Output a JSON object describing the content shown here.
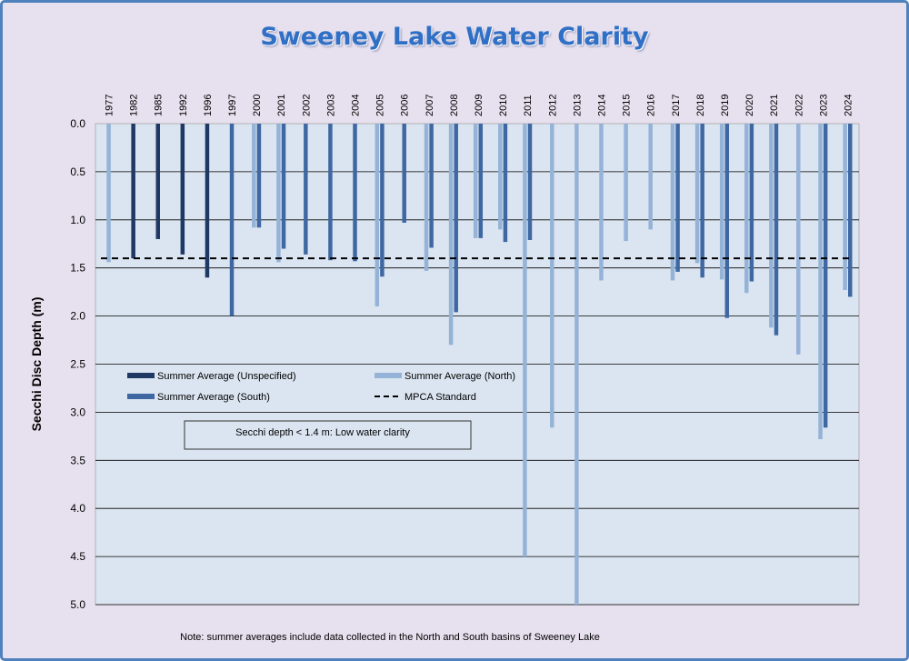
{
  "chart_data": {
    "type": "bar",
    "title": "Sweeney Lake Water Clarity",
    "ylabel": "Secchi Disc Depth (m)",
    "xlabel": "",
    "ylim": [
      0,
      5
    ],
    "y_inverted": true,
    "x_axis_position": "top",
    "y_ticks": [
      "0.0",
      "0.5",
      "1.0",
      "1.5",
      "2.0",
      "2.5",
      "3.0",
      "3.5",
      "4.0",
      "4.5",
      "5.0"
    ],
    "grid": true,
    "categories": [
      "1977",
      "1982",
      "1985",
      "1992",
      "1996",
      "1997",
      "2000",
      "2001",
      "2002",
      "2003",
      "2004",
      "2005",
      "2006",
      "2007",
      "2008",
      "2009",
      "2010",
      "2011",
      "2012",
      "2013",
      "2014",
      "2015",
      "2016",
      "2017",
      "2018",
      "2019",
      "2020",
      "2021",
      "2022",
      "2023",
      "2024"
    ],
    "series": [
      {
        "name": "Summer Average (Unspecified)",
        "color": "#1f3864",
        "values": [
          null,
          1.4,
          1.2,
          1.36,
          1.6,
          null,
          null,
          null,
          null,
          null,
          null,
          null,
          null,
          null,
          null,
          null,
          null,
          null,
          null,
          null,
          null,
          null,
          null,
          null,
          null,
          null,
          null,
          null,
          null,
          null,
          null
        ]
      },
      {
        "name": "Summer Average (North)",
        "color": "#95b3d7",
        "values": [
          1.44,
          null,
          null,
          null,
          null,
          null,
          1.08,
          1.44,
          null,
          null,
          null,
          1.9,
          null,
          1.53,
          2.3,
          1.19,
          1.1,
          4.5,
          3.16,
          5.0,
          1.63,
          1.22,
          1.1,
          1.63,
          1.45,
          1.62,
          1.76,
          2.12,
          2.4,
          3.28,
          1.73
        ]
      },
      {
        "name": "Summer Average (South)",
        "color": "#3f68a3",
        "values": [
          null,
          null,
          null,
          null,
          null,
          2.0,
          1.08,
          1.3,
          1.36,
          1.42,
          1.43,
          1.59,
          1.03,
          1.29,
          1.96,
          1.19,
          1.23,
          1.21,
          null,
          null,
          null,
          null,
          null,
          1.54,
          1.6,
          2.02,
          1.64,
          2.2,
          null,
          3.16,
          1.8
        ]
      }
    ],
    "reference_line": {
      "name": "MPCA Standard",
      "value": 1.4,
      "style": "dashed"
    },
    "legend_position": "center-left"
  },
  "annotation_box": {
    "text": "Secchi depth  < 1.4 m: Low water clarity"
  },
  "note": "Note: summer averages include data collected in the North and South basins of Sweeney Lake",
  "colors": {
    "plot_background": "#dbe5f1",
    "frame_background": "#e7e1ef",
    "border": "#4f81bd",
    "title": "#2f6fc6"
  }
}
